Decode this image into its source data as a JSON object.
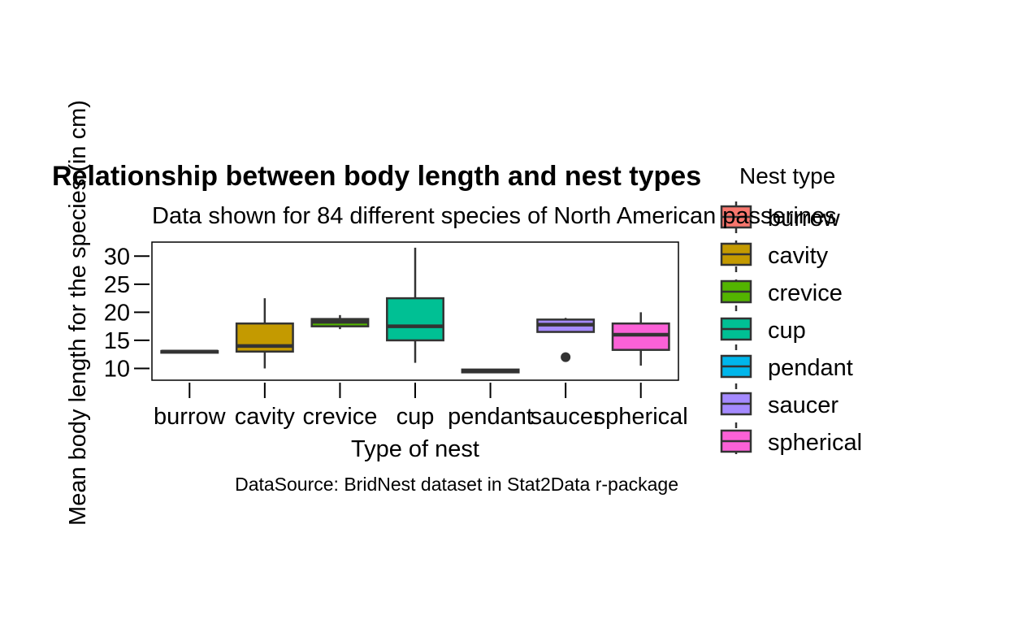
{
  "chart_data": {
    "type": "boxplot",
    "title": "Relationship between body length and nest types",
    "subtitle": "Data shown for 84 different species of North American passerines",
    "xlabel": "Type of nest",
    "ylabel": "Mean body length for the species (in cm)",
    "caption": "DataSource: BridNest dataset in Stat2Data r-package",
    "categories": [
      "burrow",
      "cavity",
      "crevice",
      "cup",
      "pendant",
      "saucer",
      "spherical"
    ],
    "y_ticks": [
      10,
      15,
      20,
      25,
      30
    ],
    "ylim": [
      7.9,
      32.5
    ],
    "grid": false,
    "legend": {
      "title": "Nest type",
      "position": "right",
      "items": [
        {
          "label": "burrow",
          "color": "#F8766D"
        },
        {
          "label": "cavity",
          "color": "#C49A00"
        },
        {
          "label": "crevice",
          "color": "#53B400"
        },
        {
          "label": "cup",
          "color": "#00C094"
        },
        {
          "label": "pendant",
          "color": "#00B6EB"
        },
        {
          "label": "saucer",
          "color": "#A58AFF"
        },
        {
          "label": "spherical",
          "color": "#FB61D7"
        }
      ]
    },
    "boxes": [
      {
        "category": "burrow",
        "min": 12.8,
        "q1": 12.8,
        "median": 13.0,
        "q3": 13.1,
        "max": 13.1,
        "outliers": [],
        "color": "#F8766D"
      },
      {
        "category": "cavity",
        "min": 10.0,
        "q1": 13.0,
        "median": 14.0,
        "q3": 18.0,
        "max": 22.5,
        "outliers": [],
        "color": "#C49A00"
      },
      {
        "category": "crevice",
        "min": 17.0,
        "q1": 17.5,
        "median": 18.3,
        "q3": 18.8,
        "max": 19.5,
        "outliers": [],
        "color": "#53B400"
      },
      {
        "category": "cup",
        "min": 11.0,
        "q1": 15.0,
        "median": 17.5,
        "q3": 22.5,
        "max": 31.5,
        "outliers": [],
        "color": "#00C094"
      },
      {
        "category": "pendant",
        "min": 9.3,
        "q1": 9.3,
        "median": 9.5,
        "q3": 9.8,
        "max": 9.8,
        "outliers": [],
        "color": "#00B6EB"
      },
      {
        "category": "saucer",
        "min": 16.5,
        "q1": 16.5,
        "median": 17.8,
        "q3": 18.7,
        "max": 19.0,
        "outliers": [
          12.0
        ],
        "color": "#A58AFF"
      },
      {
        "category": "spherical",
        "min": 10.5,
        "q1": 13.3,
        "median": 16.0,
        "q3": 18.0,
        "max": 20.0,
        "outliers": [],
        "color": "#FB61D7"
      }
    ]
  }
}
